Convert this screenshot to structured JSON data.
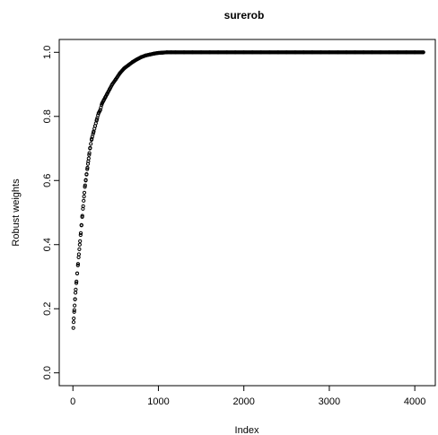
{
  "chart_data": {
    "type": "scatter",
    "title": "surerob",
    "xlabel": "Index",
    "ylabel": "Robust weights",
    "xlim": [
      -160,
      4240
    ],
    "ylim": [
      -0.04,
      1.04
    ],
    "xticks": [
      0,
      1000,
      2000,
      3000,
      4000
    ],
    "xtick_labels": [
      "0",
      "1000",
      "2000",
      "3000",
      "4000"
    ],
    "yticks": [
      0.0,
      0.2,
      0.4,
      0.6,
      0.8,
      1.0
    ],
    "ytick_labels": [
      "0.0",
      "0.2",
      "0.4",
      "0.6",
      "0.8",
      "1.0"
    ],
    "grid": false,
    "legend": "none",
    "marker": "open-circle",
    "series": [
      {
        "x": [
          5,
          10,
          15,
          20,
          25,
          30,
          40,
          50,
          60,
          70,
          80,
          90,
          100,
          110,
          120,
          130,
          140,
          150,
          160,
          170,
          180,
          190,
          200,
          220,
          240,
          260,
          280,
          300,
          320,
          340,
          360,
          380,
          400,
          430,
          460,
          500,
          550,
          600,
          650,
          700,
          750,
          800,
          850,
          900,
          950,
          1000,
          1050,
          1100,
          1150,
          1200,
          1300,
          1400,
          1500,
          1600,
          1700,
          1800,
          1900,
          2000,
          2100,
          2200,
          2300,
          2400,
          2500,
          2600,
          2700,
          2800,
          2900,
          3000,
          3100,
          3200,
          3300,
          3400,
          3500,
          3600,
          3700,
          3800,
          3900,
          4000,
          4100
        ],
        "y": [
          0.14,
          0.17,
          0.19,
          0.21,
          0.23,
          0.25,
          0.28,
          0.31,
          0.34,
          0.37,
          0.4,
          0.43,
          0.46,
          0.49,
          0.52,
          0.55,
          0.58,
          0.6,
          0.62,
          0.64,
          0.66,
          0.68,
          0.7,
          0.73,
          0.75,
          0.77,
          0.79,
          0.81,
          0.82,
          0.84,
          0.85,
          0.86,
          0.87,
          0.885,
          0.9,
          0.915,
          0.935,
          0.95,
          0.96,
          0.97,
          0.978,
          0.985,
          0.99,
          0.993,
          0.996,
          0.998,
          0.999,
          1.0,
          1.0,
          1.0,
          1.0,
          1.0,
          1.0,
          1.0,
          1.0,
          1.0,
          1.0,
          1.0,
          1.0,
          1.0,
          1.0,
          1.0,
          1.0,
          1.0,
          1.0,
          1.0,
          1.0,
          1.0,
          1.0,
          1.0,
          1.0,
          1.0,
          1.0,
          1.0,
          1.0,
          1.0,
          1.0,
          1.0,
          1.0
        ]
      }
    ]
  }
}
